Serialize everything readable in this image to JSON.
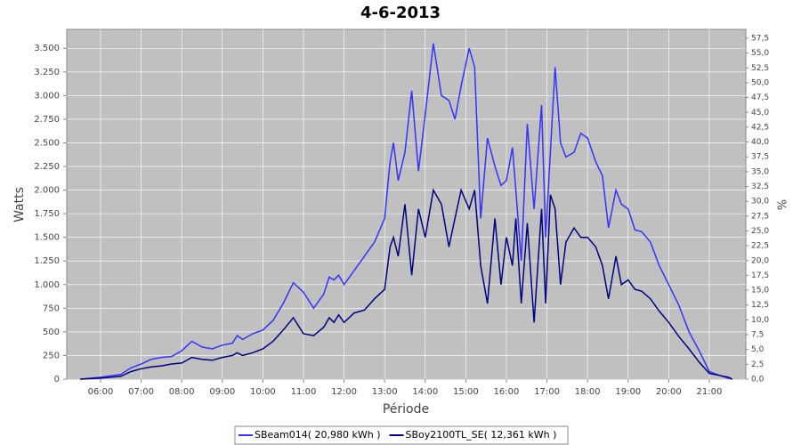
{
  "chart_data": {
    "type": "line",
    "title": "4-6-2013",
    "x_label": "Période",
    "y_label": "Watts",
    "y2_label": "%",
    "x": [
      "05:30",
      "06:00",
      "06:30",
      "06:45",
      "07:00",
      "07:15",
      "07:30",
      "07:45",
      "08:00",
      "08:15",
      "08:30",
      "08:45",
      "09:00",
      "09:15",
      "09:22",
      "09:30",
      "09:45",
      "10:00",
      "10:15",
      "10:30",
      "10:45",
      "11:00",
      "11:15",
      "11:30",
      "11:38",
      "11:45",
      "11:52",
      "12:00",
      "12:15",
      "12:30",
      "12:45",
      "13:00",
      "13:08",
      "13:13",
      "13:20",
      "13:30",
      "13:40",
      "13:50",
      "14:00",
      "14:12",
      "14:24",
      "14:35",
      "14:44",
      "14:53",
      "15:05",
      "15:13",
      "15:22",
      "15:32",
      "15:43",
      "15:52",
      "16:00",
      "16:09",
      "16:14",
      "16:22",
      "16:31",
      "16:41",
      "16:52",
      "16:58",
      "17:05",
      "17:12",
      "17:20",
      "17:28",
      "17:40",
      "17:50",
      "18:00",
      "18:12",
      "18:22",
      "18:31",
      "18:42",
      "18:50",
      "19:00",
      "19:10",
      "19:20",
      "19:33",
      "19:46",
      "20:00",
      "20:15",
      "20:30",
      "20:45",
      "21:00",
      "21:15",
      "21:28",
      "21:34"
    ],
    "series": [
      {
        "name": "SBeam014( 20,980 kWh )",
        "color": "#3333ff",
        "values": [
          0,
          20,
          50,
          120,
          160,
          210,
          230,
          240,
          300,
          400,
          340,
          320,
          360,
          380,
          460,
          420,
          480,
          520,
          620,
          800,
          1020,
          920,
          750,
          900,
          1080,
          1050,
          1100,
          1000,
          1150,
          1300,
          1450,
          1700,
          2300,
          2500,
          2100,
          2400,
          3050,
          2200,
          2800,
          3550,
          3000,
          2950,
          2750,
          3100,
          3500,
          3300,
          1700,
          2550,
          2250,
          2050,
          2100,
          2450,
          2000,
          1250,
          2700,
          1800,
          2900,
          1500,
          2400,
          3300,
          2500,
          2350,
          2400,
          2600,
          2550,
          2300,
          2150,
          1600,
          2000,
          1850,
          1800,
          1580,
          1560,
          1450,
          1200,
          1000,
          780,
          500,
          300,
          80,
          40,
          10,
          0
        ]
      },
      {
        "name": "SBoy2100TL_SE( 12,361 kWh )",
        "color": "#000080",
        "values": [
          0,
          10,
          30,
          80,
          110,
          130,
          140,
          160,
          170,
          230,
          210,
          200,
          230,
          250,
          280,
          250,
          280,
          320,
          400,
          520,
          650,
          480,
          460,
          550,
          650,
          600,
          680,
          600,
          700,
          730,
          850,
          950,
          1400,
          1500,
          1300,
          1850,
          1100,
          1800,
          1500,
          2000,
          1850,
          1400,
          1700,
          2000,
          1800,
          2000,
          1200,
          800,
          1700,
          1000,
          1500,
          1200,
          1700,
          800,
          1650,
          600,
          1800,
          800,
          1950,
          1800,
          1000,
          1450,
          1600,
          1500,
          1500,
          1400,
          1200,
          850,
          1300,
          1000,
          1050,
          950,
          930,
          850,
          720,
          600,
          450,
          320,
          180,
          60,
          40,
          20,
          0
        ]
      }
    ],
    "xlim": [
      "05:10",
      "21:54"
    ],
    "xticks": [
      "06:00",
      "07:00",
      "08:00",
      "09:00",
      "10:00",
      "11:00",
      "12:00",
      "13:00",
      "14:00",
      "15:00",
      "16:00",
      "17:00",
      "18:00",
      "19:00",
      "20:00",
      "21:00"
    ],
    "ylim": [
      0,
      3700
    ],
    "yticks": [
      0,
      250,
      500,
      750,
      {
        "value": 1000,
        "label": "1.000"
      },
      {
        "value": 1250,
        "label": "1.250"
      },
      {
        "value": 1500,
        "label": "1.500"
      },
      {
        "value": 1750,
        "label": "1.750"
      },
      {
        "value": 2000,
        "label": "2.000"
      },
      {
        "value": 2250,
        "label": "2.250"
      },
      {
        "value": 2500,
        "label": "2.500"
      },
      {
        "value": 2750,
        "label": "2.750"
      },
      {
        "value": 3000,
        "label": "3.000"
      },
      {
        "value": 3250,
        "label": "3.250"
      },
      {
        "value": 3500,
        "label": "3.500"
      }
    ],
    "y2lim": [
      0,
      59
    ],
    "y2ticks": [
      {
        "value": 0,
        "label": "0,0"
      },
      {
        "value": 2.5,
        "label": "2,5"
      },
      {
        "value": 5,
        "label": "5,0"
      },
      {
        "value": 7.5,
        "label": "7,5"
      },
      {
        "value": 10,
        "label": "10,0"
      },
      {
        "value": 12.5,
        "label": "12,5"
      },
      {
        "value": 15,
        "label": "15,0"
      },
      {
        "value": 17.5,
        "label": "17,5"
      },
      {
        "value": 20,
        "label": "20,0"
      },
      {
        "value": 22.5,
        "label": "22,5"
      },
      {
        "value": 25,
        "label": "25,0"
      },
      {
        "value": 27.5,
        "label": "27,5"
      },
      {
        "value": 30,
        "label": "30,0"
      },
      {
        "value": 32.5,
        "label": "32,5"
      },
      {
        "value": 35,
        "label": "35,0"
      },
      {
        "value": 37.5,
        "label": "37,5"
      },
      {
        "value": 40,
        "label": "40,0"
      },
      {
        "value": 42.5,
        "label": "42,5"
      },
      {
        "value": 45,
        "label": "45,0"
      },
      {
        "value": 47.5,
        "label": "47,5"
      },
      {
        "value": 50,
        "label": "50,0"
      },
      {
        "value": 52.5,
        "label": "52,5"
      },
      {
        "value": 55,
        "label": "55,0"
      },
      {
        "value": 57.5,
        "label": "57,5"
      }
    ],
    "grid": true,
    "legend": "bottom"
  }
}
